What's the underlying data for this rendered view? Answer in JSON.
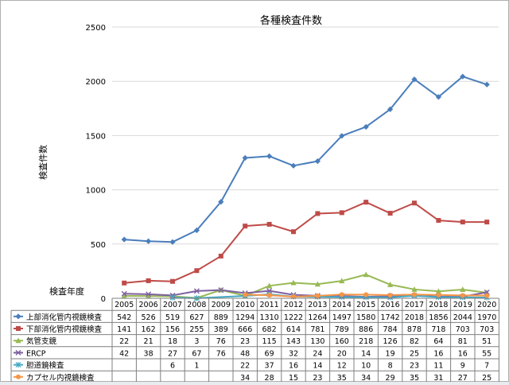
{
  "chart_data": {
    "type": "line",
    "title": "各種検査件数",
    "ylabel": "検査件数",
    "xlabel": "検査年度",
    "ylim": [
      0,
      2500
    ],
    "yticks": [
      0,
      500,
      1000,
      1500,
      2000,
      2500
    ],
    "grid": "horizontal",
    "legend": "data-table-bottom",
    "categories": [
      "2005",
      "2006",
      "2007",
      "2008",
      "2009",
      "2010",
      "2011",
      "2012",
      "2013",
      "2014",
      "2015",
      "2016",
      "2017",
      "2018",
      "2019",
      "2020"
    ],
    "series": [
      {
        "name": "上部消化管内視鏡検査",
        "color": "#4a7ebb",
        "marker": "diamond",
        "values": [
          542,
          526,
          519,
          627,
          889,
          1294,
          1310,
          1222,
          1264,
          1497,
          1580,
          1742,
          2018,
          1856,
          2044,
          1970
        ]
      },
      {
        "name": "下部消化管内視鏡検査",
        "color": "#be4b48",
        "marker": "square",
        "values": [
          141,
          162,
          156,
          255,
          389,
          666,
          682,
          614,
          781,
          789,
          886,
          784,
          878,
          718,
          703,
          703
        ]
      },
      {
        "name": "気管支鏡",
        "color": "#98b954",
        "marker": "triangle",
        "values": [
          22,
          21,
          18,
          3,
          76,
          23,
          115,
          143,
          130,
          160,
          218,
          126,
          82,
          64,
          81,
          51
        ]
      },
      {
        "name": "ERCP",
        "color": "#7d60a0",
        "marker": "x",
        "values": [
          42,
          38,
          27,
          67,
          76,
          48,
          69,
          32,
          24,
          20,
          14,
          19,
          25,
          16,
          16,
          55
        ]
      },
      {
        "name": "胆道鏡検査",
        "color": "#46aac5",
        "marker": "star",
        "values": [
          null,
          null,
          6,
          1,
          null,
          22,
          37,
          16,
          14,
          12,
          10,
          8,
          23,
          11,
          9,
          7
        ]
      },
      {
        "name": "カプセル内視鏡検査",
        "color": "#f79646",
        "marker": "circle",
        "values": [
          null,
          null,
          null,
          null,
          null,
          34,
          28,
          15,
          23,
          35,
          34,
          29,
          35,
          31,
          27,
          25
        ]
      }
    ]
  }
}
